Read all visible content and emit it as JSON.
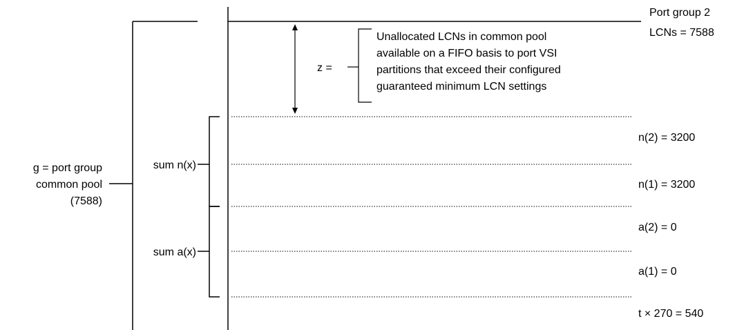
{
  "header": {
    "port_group_line1": "Port group 2",
    "port_group_line2": "LCNs = 7588"
  },
  "pool": {
    "line1": "g = port group",
    "line2": "common pool",
    "line3": "(7588)"
  },
  "z": {
    "label": "z =",
    "description": [
      "Unallocated LCNs in common pool",
      "available on a FIFO basis to port VSI",
      "partitions that exceed their configured",
      "guaranteed minimum LCN settings"
    ]
  },
  "sums": {
    "n": "sum n(x)",
    "a": "sum a(x)"
  },
  "levels": {
    "n2": "n(2) = 3200",
    "n1": "n(1) = 3200",
    "a2": "a(2) = 0",
    "a1": "a(1) = 0",
    "t": "t × 270 = 540"
  },
  "colors": {
    "line": "#000000",
    "background": "#ffffff"
  }
}
